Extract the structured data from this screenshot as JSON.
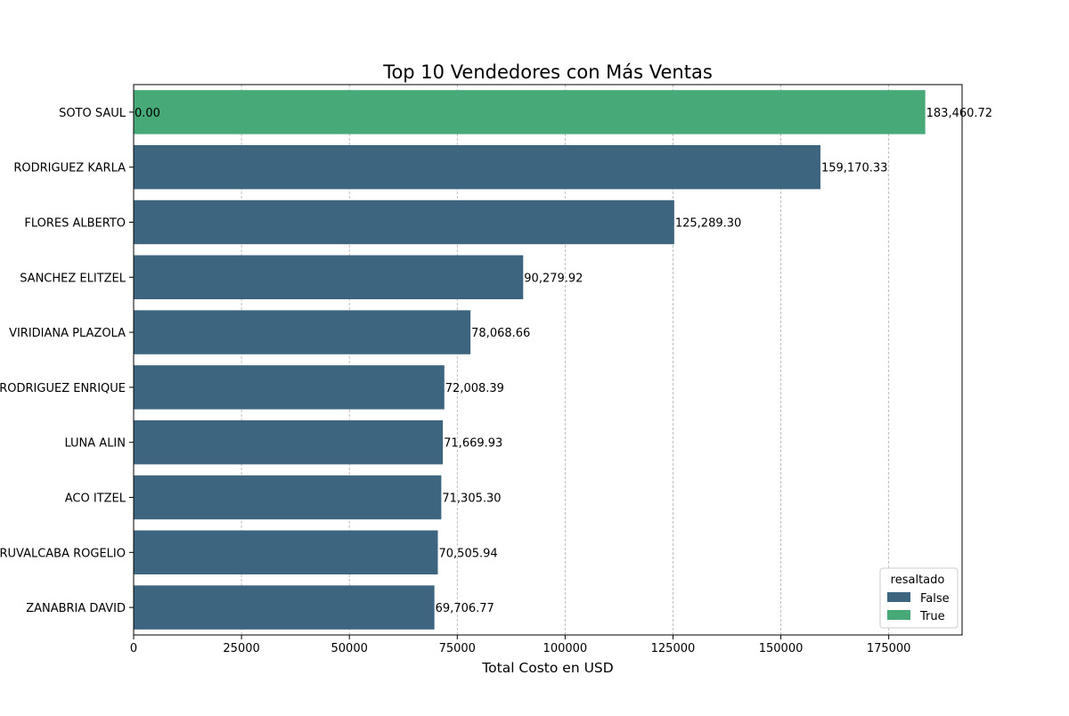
{
  "chart_data": {
    "type": "bar",
    "orientation": "horizontal",
    "title": "Top 10 Vendedores con Más Ventas",
    "xlabel": "Total Costo en USD",
    "ylabel": "",
    "xlim": [
      0,
      192000
    ],
    "xticks": [
      0,
      25000,
      50000,
      75000,
      100000,
      125000,
      150000,
      175000
    ],
    "grid": "vertical dashed",
    "categories": [
      "SOTO SAUL",
      "RODRIGUEZ KARLA",
      "FLORES ALBERTO",
      "SANCHEZ ELITZEL",
      "VIRIDIANA PLAZOLA",
      "RODRIGUEZ ENRIQUE",
      "LUNA ALIN",
      "ACO ITZEL",
      "RUVALCABA ROGELIO",
      "ZANABRIA DAVID"
    ],
    "values": [
      183460.72,
      159170.33,
      125289.3,
      90279.92,
      78068.66,
      72008.39,
      71669.93,
      71305.3,
      70505.94,
      69706.77
    ],
    "value_labels": [
      "183,460.72",
      "159,170.33",
      "125,289.30",
      "90,279.92",
      "78,068.66",
      "72,008.39",
      "71,669.93",
      "71,305.30",
      "70,505.94",
      "69,706.77"
    ],
    "highlighted": [
      true,
      false,
      false,
      false,
      false,
      false,
      false,
      false,
      false,
      false
    ],
    "extra_labels": [
      "0.00"
    ],
    "legend": {
      "title": "resaltado",
      "position": "lower-right",
      "entries": [
        {
          "name": "False",
          "color": "#3e6580"
        },
        {
          "name": "True",
          "color": "#47a878"
        }
      ]
    }
  }
}
